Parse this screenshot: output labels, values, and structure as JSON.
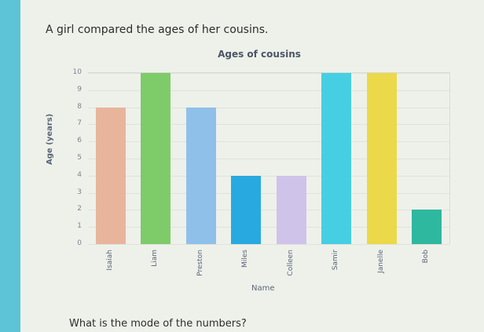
{
  "question_text": "A girl compared the ages of her cousins.",
  "footer_question": "What is the mode of the numbers?",
  "chart_data": {
    "type": "bar",
    "title": "Ages of cousins",
    "xlabel": "Name",
    "ylabel": "Age (years)",
    "categories": [
      "Isaiah",
      "Liam",
      "Preston",
      "Miles",
      "Colleen",
      "Samir",
      "Janelle",
      "Bob"
    ],
    "values": [
      8,
      10,
      8,
      4,
      4,
      10,
      10,
      2
    ],
    "colors": [
      "#e8b59c",
      "#7ecb6a",
      "#8fc0ea",
      "#28a9e0",
      "#cfc3ea",
      "#46cfe2",
      "#ecd94a",
      "#2eb8a0"
    ],
    "ylim": [
      0,
      10
    ],
    "yticks": [
      "0",
      "1",
      "2",
      "3",
      "4",
      "5",
      "6",
      "7",
      "8",
      "9",
      "10"
    ],
    "grid": true,
    "legend": "none"
  }
}
